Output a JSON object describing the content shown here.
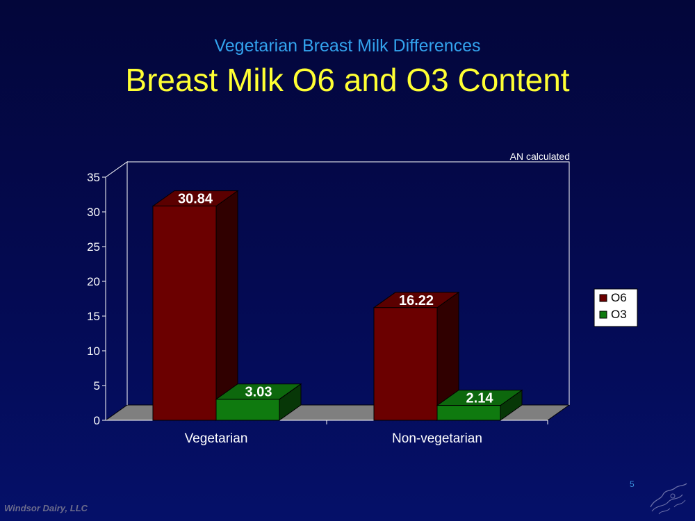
{
  "slide": {
    "subtitle": "Vegetarian Breast Milk Differences",
    "title": "Breast Milk O6 and O3 Content",
    "footer": "Windsor Dairy, LLC",
    "page_number": "5"
  },
  "colors": {
    "o6": "#6b0000",
    "o3": "#0f7a0f",
    "title": "#ffff33",
    "subtitle": "#33a3ee"
  },
  "chart_data": {
    "type": "bar",
    "title": "",
    "annotation": "AN calculated",
    "xlabel": "",
    "ylabel": "",
    "ylim": [
      0,
      35
    ],
    "yticks": [
      0,
      5,
      10,
      15,
      20,
      25,
      30,
      35
    ],
    "categories": [
      "Vegetarian",
      "Non-vegetarian"
    ],
    "series": [
      {
        "name": "O6",
        "values": [
          30.84,
          16.22
        ],
        "labels": [
          "30.84",
          "16.22"
        ]
      },
      {
        "name": "O3",
        "values": [
          3.03,
          2.14
        ],
        "labels": [
          "3.03",
          "2.14"
        ]
      }
    ],
    "legend_position": "right",
    "three_d": true
  }
}
